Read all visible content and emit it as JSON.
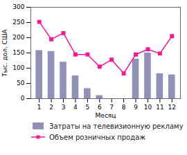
{
  "chart_data": {
    "type": "bar",
    "xlabel": "Месяц",
    "ylabel": "Тыс. дол. США",
    "x": [
      1,
      2,
      3,
      4,
      5,
      6,
      7,
      8,
      9,
      10,
      11,
      12
    ],
    "series": [
      {
        "name": "Затраты на телевизионную рекламу",
        "type": "bar",
        "color": "#9090b8",
        "values": [
          158,
          155,
          120,
          75,
          33,
          10,
          0,
          0,
          130,
          150,
          82,
          78
        ]
      },
      {
        "name": "Объем розничных продаж",
        "type": "line",
        "color": "#ff1493",
        "marker": "square",
        "values": [
          252,
          195,
          215,
          145,
          145,
          105,
          128,
          83,
          145,
          162,
          148,
          205
        ]
      }
    ],
    "xlim": [
      0.3,
      12.7
    ],
    "xticks": [
      1,
      2,
      3,
      4,
      5,
      6,
      7,
      8,
      9,
      10,
      11,
      12
    ],
    "ylim": [
      0,
      300
    ],
    "yticks": [
      0,
      50,
      100,
      150,
      200,
      250,
      300
    ],
    "grid": false,
    "legend": "bottom"
  }
}
